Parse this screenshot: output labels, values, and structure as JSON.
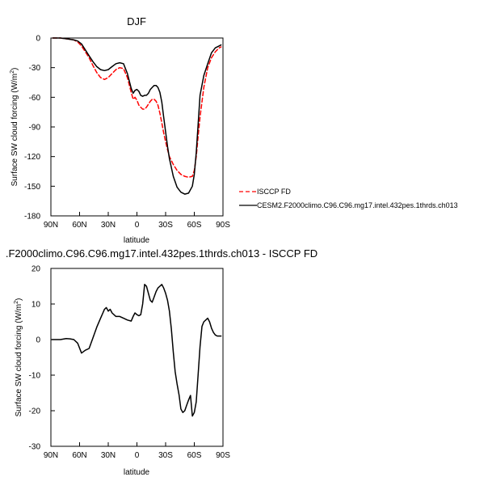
{
  "chart_data": [
    {
      "type": "line",
      "title": "DJF",
      "xlabel": "latitude",
      "ylabel": "Surface SW cloud forcing (W/m²)",
      "xlim": [
        90,
        -90
      ],
      "ylim": [
        -180,
        0
      ],
      "xticks": [
        90,
        60,
        30,
        0,
        -30,
        -60,
        -90
      ],
      "xtick_labels": [
        "90N",
        "60N",
        "30N",
        "0",
        "30S",
        "60S",
        "90S"
      ],
      "yticks": [
        0,
        -30,
        -60,
        -90,
        -120,
        -150,
        -180
      ],
      "ytick_labels": [
        "0",
        "-30",
        "-60",
        "-90",
        "-120",
        "-150",
        "-180"
      ],
      "grid": false,
      "legend_position": "right",
      "series": [
        {
          "name": "ISCCP FD",
          "color": "#ff0000",
          "dash": "dashed",
          "x": [
            88,
            80,
            72,
            66,
            62,
            58,
            54,
            50,
            46,
            42,
            38,
            34,
            30,
            26,
            22,
            18,
            14,
            10,
            6,
            4,
            2,
            0,
            -2,
            -4,
            -6,
            -8,
            -10,
            -12,
            -14,
            -16,
            -18,
            -20,
            -22,
            -24,
            -26,
            -28,
            -30,
            -32,
            -34,
            -38,
            -42,
            -46,
            -50,
            -54,
            -58,
            -60,
            -62,
            -64,
            -66,
            -70,
            -74,
            -78,
            -82,
            -86,
            -88
          ],
          "y": [
            0,
            0,
            -1,
            -2,
            -4,
            -8,
            -14,
            -20,
            -28,
            -35,
            -40,
            -42,
            -40,
            -36,
            -32,
            -30,
            -31,
            -40,
            -55,
            -62,
            -60,
            -63,
            -68,
            -70,
            -72,
            -72,
            -70,
            -67,
            -64,
            -62,
            -62,
            -64,
            -68,
            -76,
            -86,
            -96,
            -105,
            -113,
            -120,
            -128,
            -134,
            -138,
            -140,
            -141,
            -140,
            -134,
            -120,
            -100,
            -80,
            -50,
            -30,
            -20,
            -14,
            -10,
            -9
          ]
        },
        {
          "name": "CESM2.F2000climo.C96.C96.mg17.intel.432pes.1thrds.ch013",
          "color": "#000000",
          "dash": "solid",
          "x": [
            88,
            80,
            72,
            66,
            62,
            58,
            54,
            50,
            46,
            42,
            38,
            34,
            30,
            26,
            22,
            18,
            14,
            10,
            6,
            4,
            2,
            0,
            -2,
            -4,
            -6,
            -8,
            -10,
            -12,
            -14,
            -16,
            -18,
            -20,
            -22,
            -24,
            -26,
            -28,
            -30,
            -32,
            -34,
            -38,
            -42,
            -46,
            -50,
            -54,
            -58,
            -60,
            -62,
            -64,
            -66,
            -70,
            -74,
            -78,
            -82,
            -86,
            -88
          ],
          "y": [
            0,
            0,
            -1,
            -2,
            -3,
            -6,
            -12,
            -18,
            -24,
            -29,
            -32,
            -33,
            -32,
            -29,
            -26,
            -25,
            -26,
            -36,
            -51,
            -56,
            -53,
            -52,
            -54,
            -58,
            -59,
            -58,
            -58,
            -56,
            -52,
            -50,
            -48,
            -48,
            -50,
            -55,
            -65,
            -80,
            -95,
            -110,
            -122,
            -140,
            -151,
            -156,
            -158,
            -157,
            -150,
            -138,
            -116,
            -88,
            -58,
            -38,
            -26,
            -15,
            -10,
            -8,
            -7
          ]
        }
      ]
    },
    {
      "type": "line",
      "title": ".F2000climo.C96.C96.mg17.intel.432pes.1thrds.ch013 - ISCCP FD",
      "xlabel": "latitude",
      "ylabel": "Surface SW cloud forcing (W/m²)",
      "xlim": [
        90,
        -90
      ],
      "ylim": [
        -30,
        20
      ],
      "xticks": [
        90,
        60,
        30,
        0,
        -30,
        -60,
        -90
      ],
      "xtick_labels": [
        "90N",
        "60N",
        "30N",
        "0",
        "30S",
        "60S",
        "90S"
      ],
      "yticks": [
        20,
        10,
        0,
        -10,
        -20,
        -30
      ],
      "ytick_labels": [
        "20",
        "10",
        "0",
        "-10",
        "-20",
        "-30"
      ],
      "grid": false,
      "series": [
        {
          "color": "#000000",
          "dash": "solid",
          "x": [
            89,
            80,
            74,
            70,
            66,
            62,
            58,
            54,
            50,
            46,
            42,
            38,
            34,
            32,
            30,
            28,
            26,
            22,
            18,
            14,
            10,
            6,
            4,
            2,
            0,
            -2,
            -4,
            -6,
            -8,
            -10,
            -12,
            -14,
            -16,
            -18,
            -20,
            -22,
            -24,
            -26,
            -28,
            -30,
            -32,
            -34,
            -36,
            -38,
            -40,
            -42,
            -44,
            -46,
            -48,
            -50,
            -52,
            -54,
            -56,
            -58,
            -60,
            -62,
            -64,
            -66,
            -68,
            -70,
            -72,
            -74,
            -76,
            -78,
            -80,
            -82,
            -84,
            -86,
            -88
          ],
          "y": [
            0,
            0,
            0.3,
            0.2,
            0,
            -1,
            -3.8,
            -3,
            -2.5,
            0.5,
            3.5,
            6,
            8.5,
            9,
            8,
            8.5,
            7.5,
            6.5,
            6.5,
            6,
            5.5,
            5.2,
            6.5,
            7.5,
            7,
            6.7,
            7,
            10,
            15.5,
            15,
            13,
            11,
            10.5,
            12,
            13.5,
            14.5,
            15,
            15.5,
            14.5,
            13,
            11,
            8,
            3,
            -3.5,
            -9,
            -12.5,
            -15.5,
            -19.5,
            -20.5,
            -20,
            -18.5,
            -17,
            -15.7,
            -21.5,
            -20.5,
            -17.5,
            -10,
            -2,
            3.7,
            5,
            5.5,
            6,
            5,
            3.2,
            2,
            1.3,
            1,
            1,
            1
          ]
        }
      ]
    }
  ]
}
